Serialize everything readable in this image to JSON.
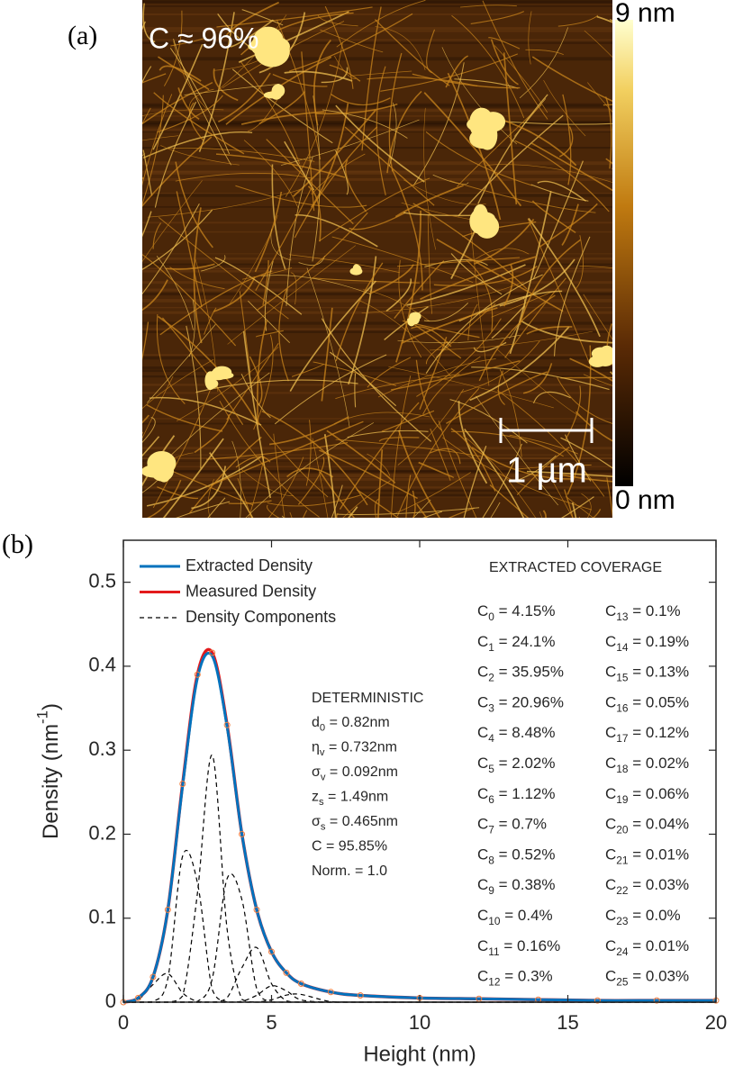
{
  "panel_a": {
    "label": "(a)",
    "coverage": "C ≈ 96%",
    "colorbar_max": "9 nm",
    "colorbar_min": "0 nm",
    "scale_bar": "1 µm"
  },
  "chart_data": {
    "type": "line",
    "panel_label": "(b)",
    "x_label": "Height (nm)",
    "y_label": [
      "Density (nm",
      "-1",
      ")"
    ],
    "xlim": [
      0,
      20
    ],
    "ylim": [
      0,
      0.55
    ],
    "xticks": [
      0,
      5,
      10,
      15,
      20
    ],
    "yticks": [
      0,
      0.1,
      0.2,
      0.3,
      0.4,
      0.5
    ],
    "x": [
      0,
      0.5,
      1,
      1.5,
      2,
      2.5,
      3,
      3.5,
      4,
      4.5,
      5,
      5.5,
      6,
      7,
      8,
      10,
      12,
      14,
      16,
      18,
      20
    ],
    "series": [
      {
        "name": "Extracted Density",
        "color": "#0072bd",
        "values": [
          0,
          0.005,
          0.03,
          0.11,
          0.258,
          0.386,
          0.412,
          0.328,
          0.2,
          0.11,
          0.06,
          0.035,
          0.022,
          0.012,
          0.008,
          0.005,
          0.004,
          0.003,
          0.002,
          0.002,
          0.002
        ]
      },
      {
        "name": "Measured Density",
        "color": "#e31a1c",
        "marker_color": "#f08040",
        "values": [
          0,
          0.005,
          0.03,
          0.11,
          0.26,
          0.39,
          0.416,
          0.33,
          0.2,
          0.11,
          0.06,
          0.035,
          0.022,
          0.012,
          0.008,
          0.005,
          0.004,
          0.003,
          0.002,
          0.002,
          0.002
        ]
      },
      {
        "name": "Density Components",
        "color": "#000000",
        "curves": [
          [
            0.0008,
            0.0028,
            0.021,
            0.034,
            0.011,
            0.0008,
            0,
            0,
            0,
            0,
            0,
            0,
            0,
            0,
            0,
            0,
            0,
            0,
            0,
            0,
            0
          ],
          [
            0,
            0,
            0.0006,
            0.028,
            0.174,
            0.142,
            0.015,
            0.0002,
            0,
            0,
            0,
            0,
            0,
            0,
            0,
            0,
            0,
            0,
            0,
            0,
            0
          ],
          [
            0,
            0,
            0,
            0,
            0.0075,
            0.13,
            0.294,
            0.087,
            0.0033,
            0,
            0,
            0,
            0,
            0,
            0,
            0,
            0,
            0,
            0,
            0,
            0
          ],
          [
            0,
            0,
            0,
            0,
            0,
            0.0009,
            0.028,
            0.147,
            0.122,
            0.016,
            0.0003,
            0,
            0,
            0,
            0,
            0,
            0,
            0,
            0,
            0,
            0
          ],
          [
            0,
            0,
            0,
            0,
            0,
            0,
            0,
            0.0054,
            0.041,
            0.065,
            0.022,
            0.0015,
            0,
            0,
            0,
            0,
            0,
            0,
            0,
            0,
            0
          ],
          [
            0,
            0,
            0,
            0,
            0,
            0,
            0,
            0,
            0.001,
            0.0082,
            0.0195,
            0.0135,
            0.0027,
            0,
            0,
            0,
            0,
            0,
            0,
            0,
            0
          ],
          [
            0,
            0,
            0,
            0,
            0,
            0,
            0,
            0,
            0,
            0,
            0.0028,
            0.0084,
            0.0092,
            0.0006,
            0,
            0,
            0,
            0,
            0,
            0,
            0
          ]
        ]
      }
    ],
    "legend": "upper left",
    "params_title": "DETERMINISTIC",
    "params": [
      [
        "d",
        "0",
        " = 0.82nm"
      ],
      [
        "η",
        "v",
        " = 0.732nm"
      ],
      [
        "σ",
        "v",
        " = 0.092nm"
      ],
      [
        "z",
        "s",
        " = 1.49nm"
      ],
      [
        "σ",
        "s",
        " = 0.465nm"
      ],
      [
        "C = 95.85%"
      ],
      [
        "Norm. = 1.0"
      ]
    ],
    "coverage_title": "EXTRACTED COVERAGE",
    "coverage": [
      [
        "C",
        "0",
        " = 4.15%"
      ],
      [
        "C",
        "1",
        " = 24.1%"
      ],
      [
        "C",
        "2",
        " = 35.95%"
      ],
      [
        "C",
        "3",
        " = 20.96%"
      ],
      [
        "C",
        "4",
        " = 8.48%"
      ],
      [
        "C",
        "5",
        " = 2.02%"
      ],
      [
        "C",
        "6",
        " = 1.12%"
      ],
      [
        "C",
        "7",
        " = 0.7%"
      ],
      [
        "C",
        "8",
        " = 0.52%"
      ],
      [
        "C",
        "9",
        " = 0.38%"
      ],
      [
        "C",
        "10",
        " = 0.4%"
      ],
      [
        "C",
        "11",
        " = 0.16%"
      ],
      [
        "C",
        "12",
        " = 0.3%"
      ],
      [
        "C",
        "13",
        " = 0.1%"
      ],
      [
        "C",
        "14",
        " = 0.19%"
      ],
      [
        "C",
        "15",
        " = 0.13%"
      ],
      [
        "C",
        "16",
        " = 0.05%"
      ],
      [
        "C",
        "17",
        " = 0.12%"
      ],
      [
        "C",
        "18",
        " = 0.02%"
      ],
      [
        "C",
        "19",
        " = 0.06%"
      ],
      [
        "C",
        "20",
        " = 0.04%"
      ],
      [
        "C",
        "21",
        " = 0.01%"
      ],
      [
        "C",
        "22",
        " = 0.03%"
      ],
      [
        "C",
        "23",
        " = 0.0%"
      ],
      [
        "C",
        "24",
        " = 0.01%"
      ],
      [
        "C",
        "25",
        " = 0.03%"
      ]
    ]
  }
}
